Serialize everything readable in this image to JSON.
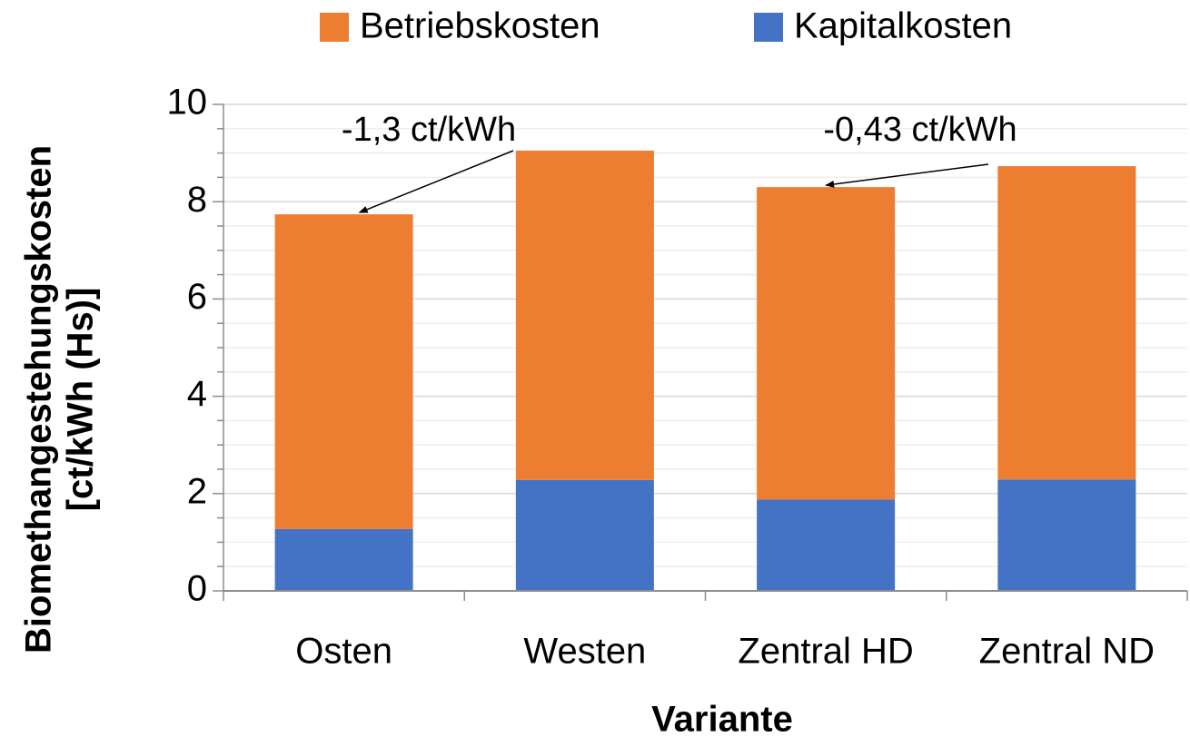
{
  "chart_data": {
    "type": "stacked_bar",
    "categories": [
      "Osten",
      "Westen",
      "Zentral HD",
      "Zentral ND"
    ],
    "series": [
      {
        "name": "Kapitalkosten",
        "color": "#4472c4",
        "values": [
          1.27,
          2.28,
          1.88,
          2.29
        ]
      },
      {
        "name": "Betriebskosten",
        "color": "#ed7d31",
        "values": [
          6.47,
          6.77,
          6.42,
          6.44
        ]
      }
    ],
    "xlabel": "Variante",
    "ylabel": [
      "Biomethangestehungskosten",
      "[ct/kWh (Hs)]"
    ],
    "ylim": [
      0,
      10
    ],
    "yticks": [
      0,
      2,
      4,
      6,
      8,
      10
    ],
    "yminorticks": [
      0.5,
      1,
      1.5,
      2.5,
      3,
      3.5,
      4.5,
      5,
      5.5,
      6.5,
      7,
      7.5,
      8.5,
      9,
      9.5
    ],
    "grid": true,
    "legend": "top",
    "annotations": [
      {
        "text": "-1,3 ct/kWh"
      },
      {
        "text": "-0,43 ct/kWh"
      }
    ]
  }
}
